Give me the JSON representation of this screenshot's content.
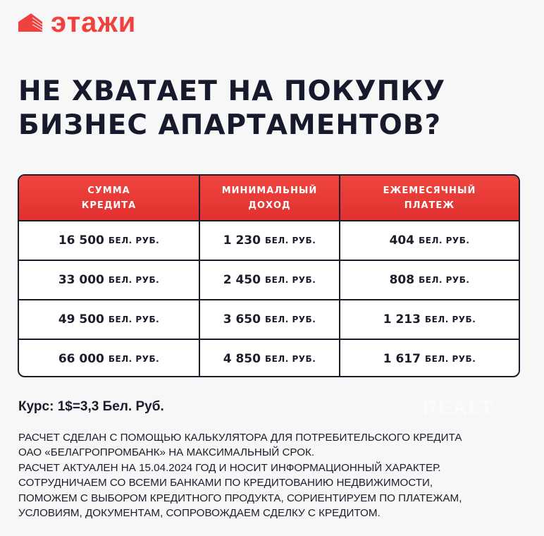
{
  "brand": {
    "name": "этажи",
    "color": "#f0413f"
  },
  "title": {
    "line1": "НЕ ХВАТАЕТ НА ПОКУПКУ",
    "line2": "БИЗНЕС АПАРТАМЕНТОВ?"
  },
  "table": {
    "headers": [
      [
        "СУММА",
        "КРЕДИТА"
      ],
      [
        "МИНИМАЛЬНЫЙ",
        "ДОХОД"
      ],
      [
        "ЕЖЕМЕСЯЧНЫЙ",
        "ПЛАТЕЖ"
      ]
    ],
    "unit": "БЕЛ. РУБ.",
    "rows": [
      [
        "16 500",
        "1 230",
        "404"
      ],
      [
        "33 000",
        "2 450",
        "808"
      ],
      [
        "49 500",
        "3 650",
        "1 213"
      ],
      [
        "66 000",
        "4 850",
        "1 617"
      ]
    ]
  },
  "rate": "Курс: 1$=3,3 Бел. Руб.",
  "notes": [
    "РАСЧЕТ СДЕЛАН С ПОМОЩЬЮ КАЛЬКУЛЯТОРА ДЛЯ ПОТРЕБИТЕЛЬСКОГО КРЕДИТА",
    "ОАО «БЕЛАГРОПРОМБАНК» НА МАКСИМАЛЬНЫЙ СРОК.",
    "РАСЧЕТ АКТУАЛЕН НА 15.04.2024 ГОД И НОСИТ ИНФОРМАЦИОННЫЙ ХАРАКТЕР.",
    "СОТРУДНИЧАЕМ СО ВСЕМИ БАНКАМИ ПО КРЕДИТОВАНИЮ НЕДВИЖИМОСТИ,",
    "ПОМОЖЕМ С ВЫБОРОМ КРЕДИТНОГО ПРОДУКТА, СОРИЕНТИРУЕМ ПО ПЛАТЕЖАМ,",
    "УСЛОВИЯМ, ДОКУМЕНТАМ, СОПРОВОЖДАЕМ СДЕЛКУ С КРЕДИТОМ."
  ],
  "watermark": "REALT"
}
